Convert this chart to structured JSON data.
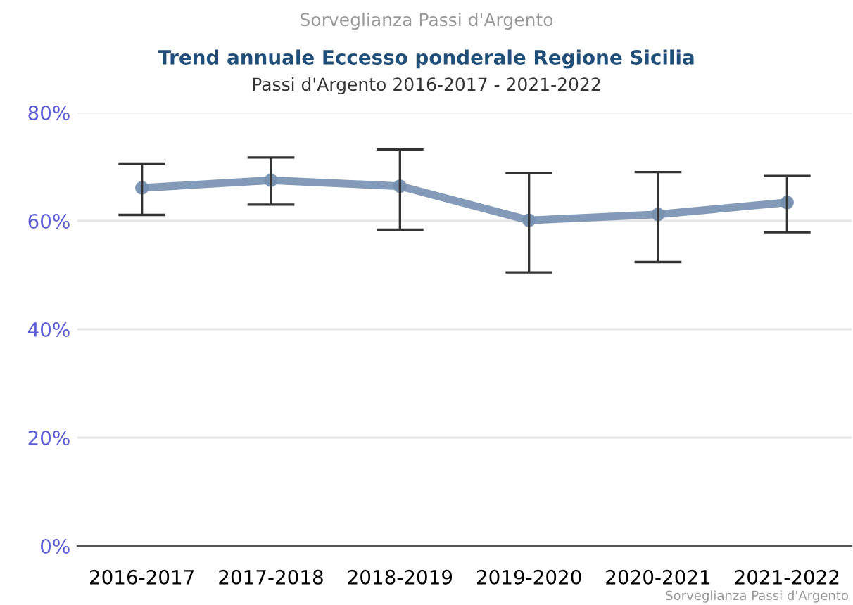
{
  "chart_data": {
    "type": "line",
    "title": "Trend annuale Eccesso ponderale Regione Sicilia",
    "subtitle": "Passi d'Argento 2016-2017 - 2021-2022",
    "annotations": [
      "Sorveglianza Passi d'Argento",
      "Sorveglianza Passi d'Argento"
    ],
    "categories": [
      "2016-2017",
      "2017-2018",
      "2018-2019",
      "2019-2020",
      "2020-2021",
      "2021-2022"
    ],
    "series": [
      {
        "color": "#7590b0",
        "values": [
          66.1,
          67.5,
          66.4,
          60.1,
          61.2,
          63.4
        ],
        "errors": [
          [
            61.1,
            70.6
          ],
          [
            63.0,
            71.7
          ],
          [
            58.4,
            73.2
          ],
          [
            50.5,
            68.8
          ],
          [
            52.4,
            69.0
          ],
          [
            57.9,
            68.3
          ]
        ]
      }
    ],
    "ylim": [
      0,
      80
    ],
    "yticks": [
      {
        "value": 0,
        "label": "0%"
      },
      {
        "value": 20,
        "label": "20%"
      },
      {
        "value": 40,
        "label": "40%"
      },
      {
        "value": 60,
        "label": "60%"
      },
      {
        "value": 80,
        "label": "80%"
      }
    ],
    "grid": "y",
    "marker": "circle",
    "line_style": "solid",
    "legend": false
  }
}
